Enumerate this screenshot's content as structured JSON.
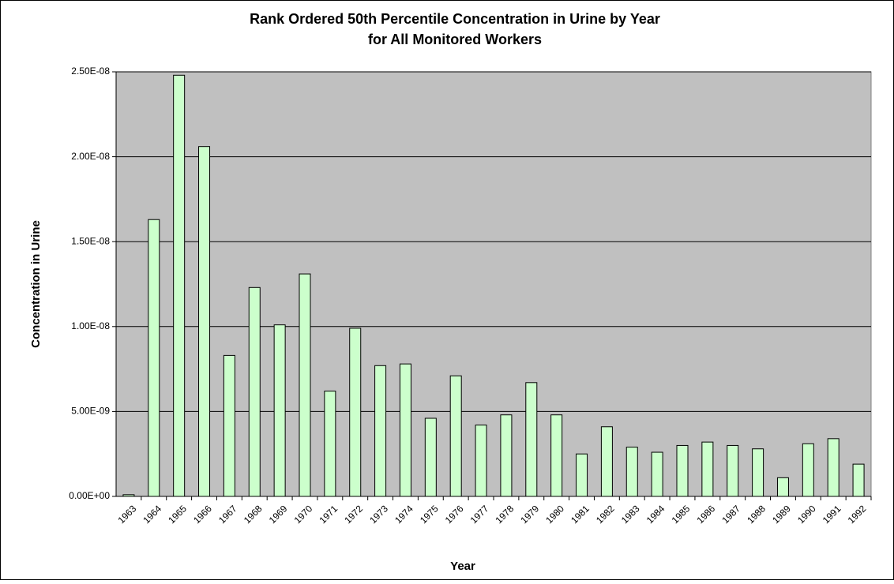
{
  "chart_data": {
    "type": "bar",
    "title": [
      "Rank Ordered 50th Percentile Concentration in Urine by Year",
      "for All Monitored Workers"
    ],
    "x_label": "Year",
    "y_label": "Concentration in Urine",
    "categories": [
      "1963",
      "1964",
      "1965",
      "1966",
      "1967",
      "1968",
      "1969",
      "1970",
      "1971",
      "1972",
      "1973",
      "1974",
      "1975",
      "1976",
      "1977",
      "1978",
      "1979",
      "1980",
      "1981",
      "1982",
      "1983",
      "1984",
      "1985",
      "1986",
      "1987",
      "1988",
      "1989",
      "1990",
      "1991",
      "1992"
    ],
    "values": [
      1e-10,
      1.63e-08,
      2.48e-08,
      2.06e-08,
      8.3e-09,
      1.23e-08,
      1.01e-08,
      1.31e-08,
      6.2e-09,
      9.9e-09,
      7.7e-09,
      7.8e-09,
      4.6e-09,
      7.1e-09,
      4.2e-09,
      4.8e-09,
      6.7e-09,
      4.8e-09,
      2.5e-09,
      4.1e-09,
      2.9e-09,
      2.6e-09,
      3e-09,
      3.2e-09,
      3e-09,
      2.8e-09,
      1.1e-09,
      3.1e-09,
      3.4e-09,
      1.9e-09
    ],
    "color": "#ccffcc",
    "ylim": [
      0,
      2.5e-08
    ],
    "yticks": [
      {
        "value": 0,
        "label": "0.00E+00"
      },
      {
        "value": 5e-09,
        "label": "5.00E-09"
      },
      {
        "value": 1e-08,
        "label": "1.00E-08"
      },
      {
        "value": 1.5e-08,
        "label": "1.50E-08"
      },
      {
        "value": 2e-08,
        "label": "2.00E-08"
      },
      {
        "value": 2.5e-08,
        "label": "2.50E-08"
      }
    ],
    "grid": true,
    "plot_background": "#c0c0c0"
  }
}
